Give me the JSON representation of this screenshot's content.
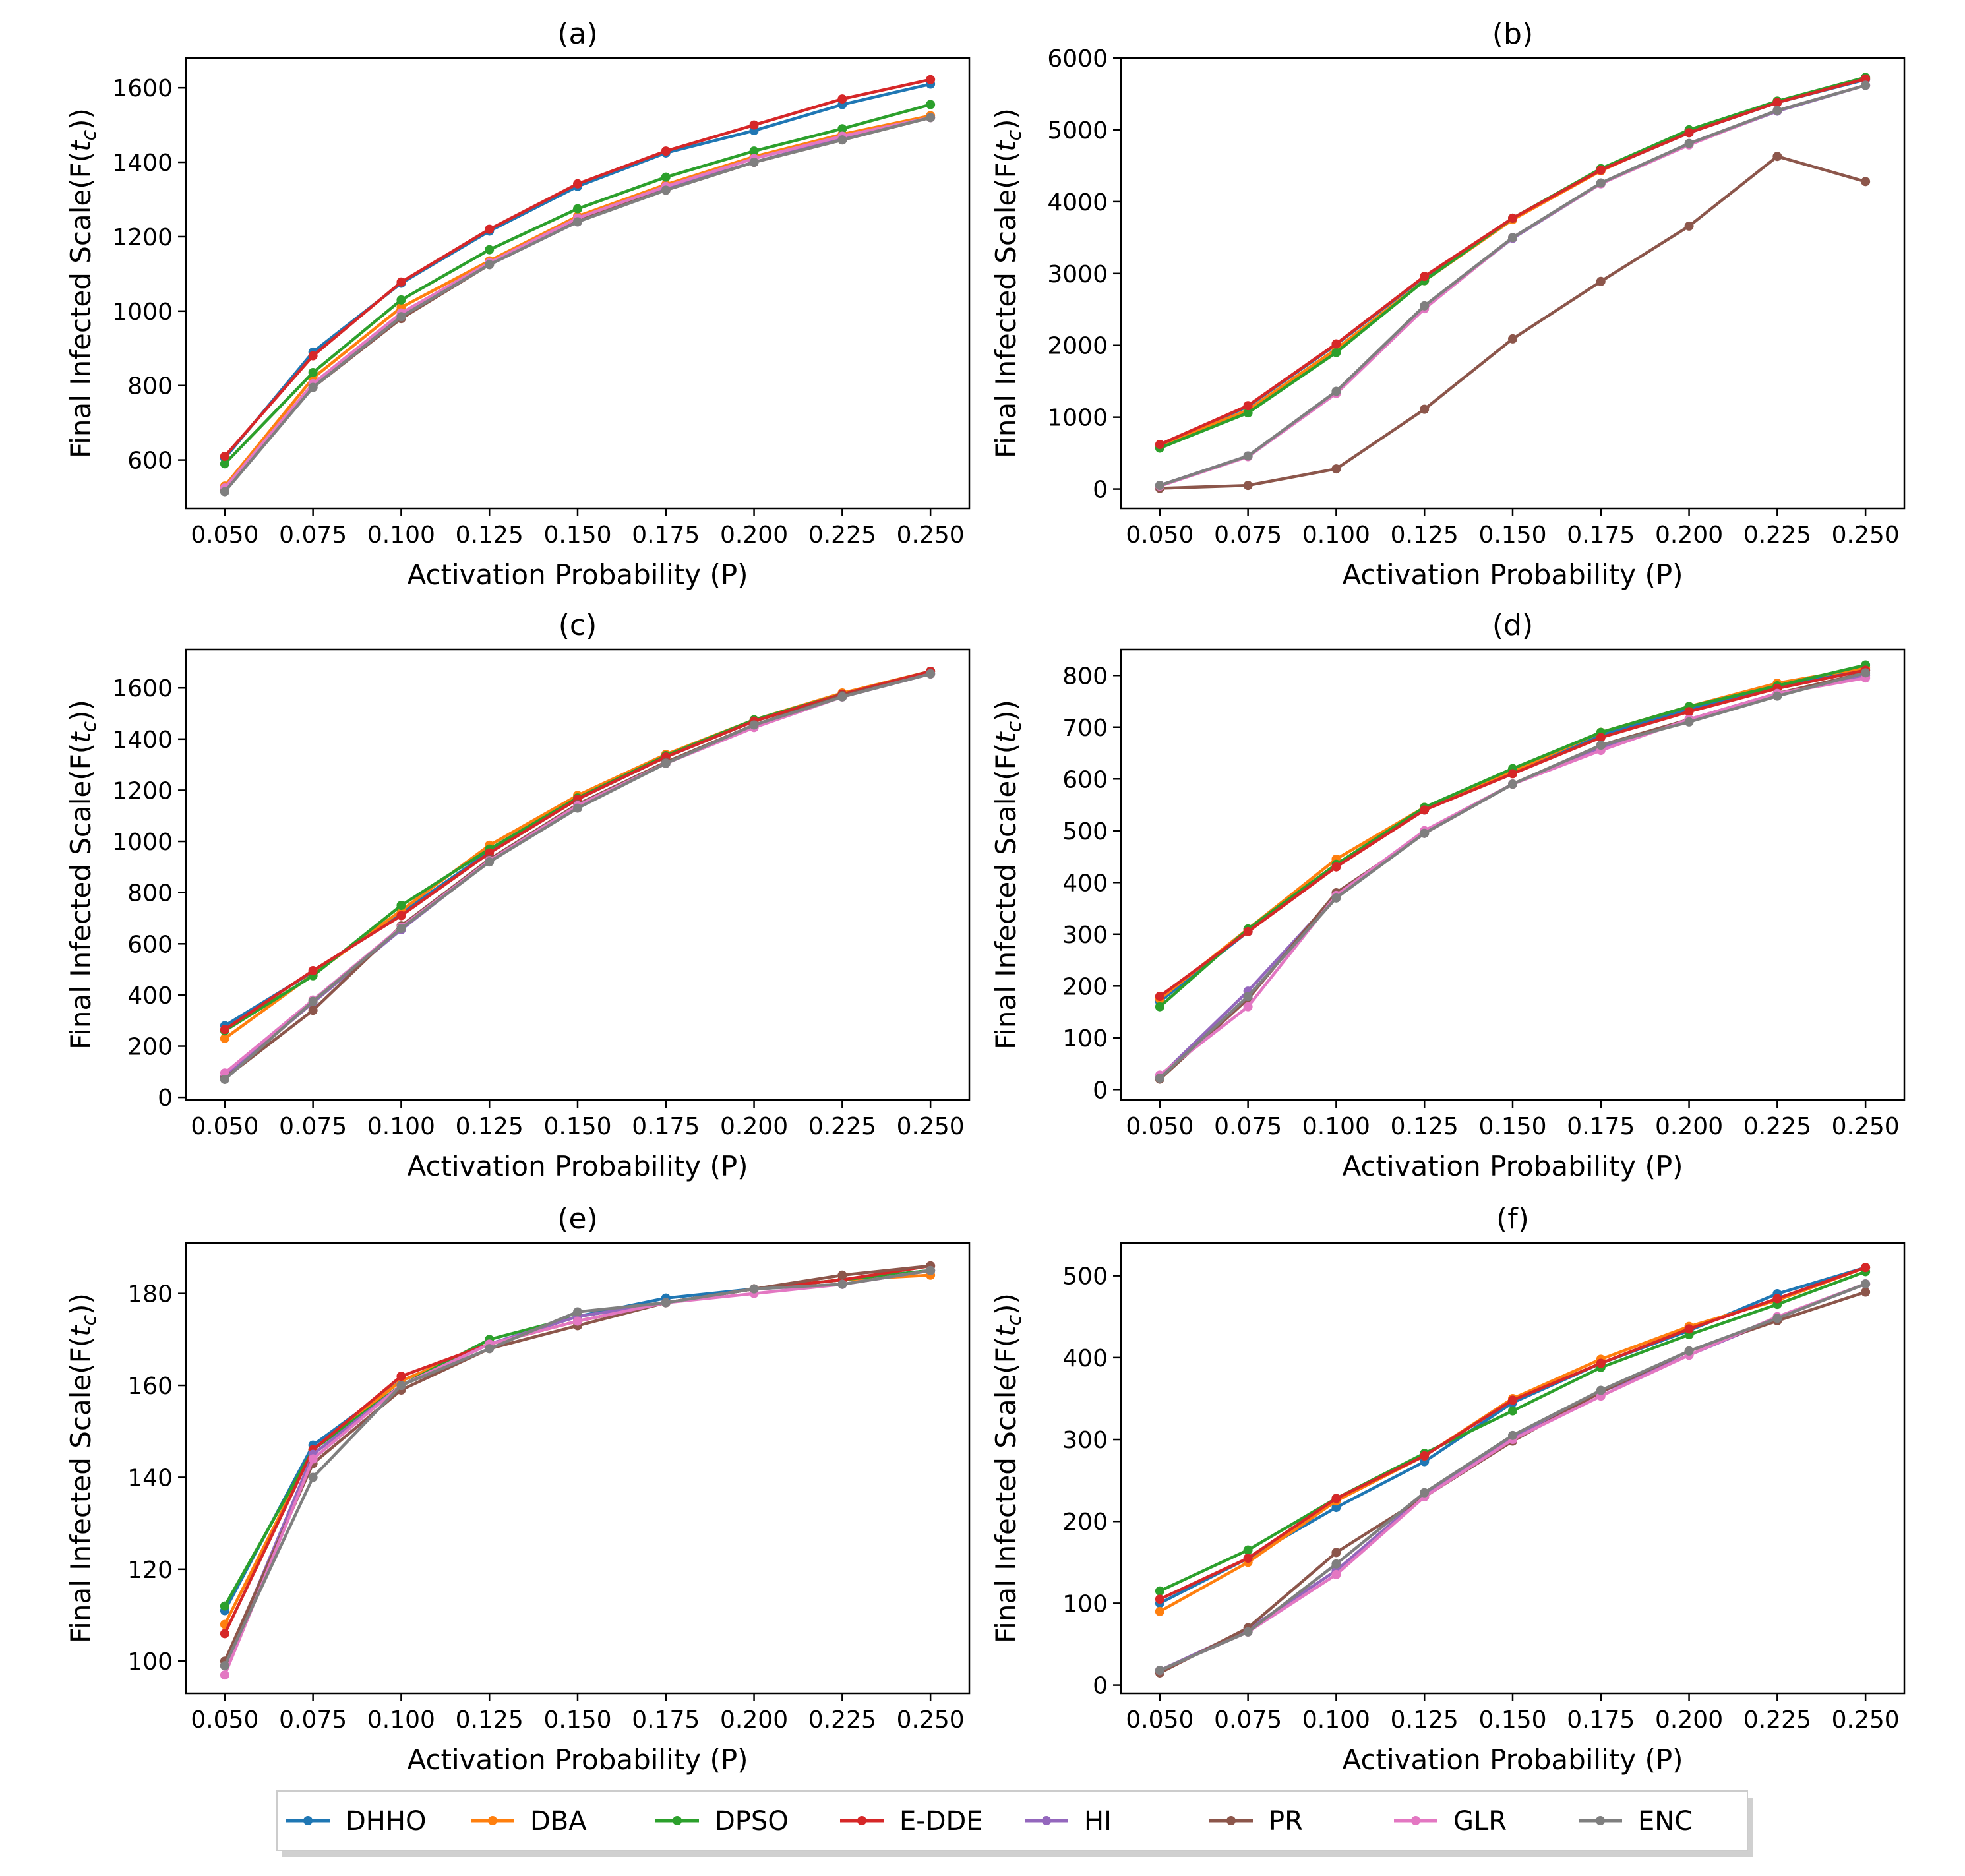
{
  "figure": {
    "legend": [
      {
        "name": "DHHO",
        "color": "#1f77b4"
      },
      {
        "name": "DBA",
        "color": "#ff7f0e"
      },
      {
        "name": "DPSO",
        "color": "#2ca02c"
      },
      {
        "name": "E-DDE",
        "color": "#d62728"
      },
      {
        "name": "HI",
        "color": "#9467bd"
      },
      {
        "name": "PR",
        "color": "#8c564b"
      },
      {
        "name": "GLR",
        "color": "#e377c2"
      },
      {
        "name": "ENC",
        "color": "#7f7f7f"
      }
    ]
  },
  "chart_data": [
    {
      "type": "line",
      "title": "(a)",
      "xlabel": "Activation Probability (P)",
      "ylabel": "Final Infected Scale(F(t_c))",
      "x": [
        0.05,
        0.075,
        0.1,
        0.125,
        0.15,
        0.175,
        0.2,
        0.225,
        0.25
      ],
      "xticks": [
        "0.050",
        "0.075",
        "0.100",
        "0.125",
        "0.150",
        "0.175",
        "0.200",
        "0.225",
        "0.250"
      ],
      "xlim": [
        0.039,
        0.261
      ],
      "ylim": [
        470,
        1680
      ],
      "yticks": [
        600,
        800,
        1000,
        1200,
        1400,
        1600
      ],
      "series": [
        {
          "name": "DHHO",
          "values": [
            605,
            890,
            1075,
            1215,
            1335,
            1425,
            1485,
            1555,
            1610
          ]
        },
        {
          "name": "DBA",
          "values": [
            530,
            820,
            1010,
            1135,
            1255,
            1340,
            1415,
            1475,
            1525
          ]
        },
        {
          "name": "DPSO",
          "values": [
            590,
            835,
            1030,
            1165,
            1275,
            1360,
            1430,
            1490,
            1555
          ]
        },
        {
          "name": "E-DDE",
          "values": [
            610,
            880,
            1078,
            1220,
            1342,
            1430,
            1500,
            1570,
            1622
          ]
        },
        {
          "name": "HI",
          "values": [
            520,
            800,
            990,
            1125,
            1240,
            1330,
            1400,
            1465,
            1520
          ]
        },
        {
          "name": "PR",
          "values": [
            520,
            795,
            980,
            1125,
            1245,
            1325,
            1400,
            1460,
            1520
          ]
        },
        {
          "name": "GLR",
          "values": [
            525,
            805,
            995,
            1130,
            1250,
            1335,
            1410,
            1470,
            1520
          ]
        },
        {
          "name": "ENC",
          "values": [
            515,
            795,
            985,
            1125,
            1240,
            1325,
            1400,
            1460,
            1520
          ]
        }
      ]
    },
    {
      "type": "line",
      "title": "(b)",
      "xlabel": "Activation Probability (P)",
      "ylabel": "Final Infected Scale(F(t_c))",
      "x": [
        0.05,
        0.075,
        0.1,
        0.125,
        0.15,
        0.175,
        0.2,
        0.225,
        0.25
      ],
      "xticks": [
        "0.050",
        "0.075",
        "0.100",
        "0.125",
        "0.150",
        "0.175",
        "0.200",
        "0.225",
        "0.250"
      ],
      "xlim": [
        0.039,
        0.261
      ],
      "ylim": [
        -270,
        6000
      ],
      "yticks": [
        0,
        1000,
        2000,
        3000,
        4000,
        5000,
        6000
      ],
      "series": [
        {
          "name": "DHHO",
          "values": [
            610,
            1150,
            2010,
            2950,
            3770,
            4440,
            4960,
            5380,
            5700
          ]
        },
        {
          "name": "DBA",
          "values": [
            600,
            1100,
            1950,
            2900,
            3750,
            4430,
            4980,
            5400,
            5720
          ]
        },
        {
          "name": "DPSO",
          "values": [
            570,
            1060,
            1900,
            2900,
            3770,
            4460,
            5000,
            5400,
            5730
          ]
        },
        {
          "name": "E-DDE",
          "values": [
            620,
            1160,
            2020,
            2960,
            3770,
            4440,
            4960,
            5380,
            5710
          ]
        },
        {
          "name": "HI",
          "values": [
            50,
            460,
            1340,
            2530,
            3490,
            4250,
            4800,
            5260,
            5620
          ]
        },
        {
          "name": "PR",
          "values": [
            10,
            50,
            280,
            1110,
            2090,
            2890,
            3660,
            4630,
            4280
          ]
        },
        {
          "name": "GLR",
          "values": [
            40,
            450,
            1330,
            2510,
            3500,
            4250,
            4790,
            5270,
            5620
          ]
        },
        {
          "name": "ENC",
          "values": [
            50,
            460,
            1360,
            2550,
            3500,
            4260,
            4810,
            5270,
            5620
          ]
        }
      ]
    },
    {
      "type": "line",
      "title": "(c)",
      "xlabel": "Activation Probability (P)",
      "ylabel": "Final Infected Scale(F(t_c))",
      "x": [
        0.05,
        0.075,
        0.1,
        0.125,
        0.15,
        0.175,
        0.2,
        0.225,
        0.25
      ],
      "xticks": [
        "0.050",
        "0.075",
        "0.100",
        "0.125",
        "0.150",
        "0.175",
        "0.200",
        "0.225",
        "0.250"
      ],
      "xlim": [
        0.039,
        0.261
      ],
      "ylim": [
        -10,
        1750
      ],
      "yticks": [
        0,
        200,
        400,
        600,
        800,
        1000,
        1200,
        1400,
        1600
      ],
      "series": [
        {
          "name": "DHHO",
          "values": [
            280,
            490,
            720,
            960,
            1165,
            1330,
            1470,
            1575,
            1665
          ]
        },
        {
          "name": "DBA",
          "values": [
            230,
            480,
            730,
            985,
            1180,
            1340,
            1475,
            1580,
            1665
          ]
        },
        {
          "name": "DPSO",
          "values": [
            260,
            475,
            750,
            970,
            1170,
            1335,
            1475,
            1575,
            1665
          ]
        },
        {
          "name": "E-DDE",
          "values": [
            265,
            495,
            710,
            955,
            1165,
            1330,
            1470,
            1575,
            1665
          ]
        },
        {
          "name": "HI",
          "values": [
            80,
            370,
            655,
            925,
            1135,
            1305,
            1450,
            1565,
            1655
          ]
        },
        {
          "name": "PR",
          "values": [
            75,
            340,
            670,
            930,
            1145,
            1310,
            1455,
            1570,
            1655
          ]
        },
        {
          "name": "GLR",
          "values": [
            95,
            380,
            665,
            925,
            1140,
            1305,
            1445,
            1565,
            1655
          ]
        },
        {
          "name": "ENC",
          "values": [
            70,
            375,
            660,
            920,
            1130,
            1305,
            1455,
            1565,
            1655
          ]
        }
      ]
    },
    {
      "type": "line",
      "title": "(d)",
      "xlabel": "Activation Probability (P)",
      "ylabel": "Final Infected Scale(F(t_c))",
      "x": [
        0.05,
        0.075,
        0.1,
        0.125,
        0.15,
        0.175,
        0.2,
        0.225,
        0.25
      ],
      "xticks": [
        "0.050",
        "0.075",
        "0.100",
        "0.125",
        "0.150",
        "0.175",
        "0.200",
        "0.225",
        "0.250"
      ],
      "xlim": [
        0.039,
        0.261
      ],
      "ylim": [
        -20,
        850
      ],
      "yticks": [
        0,
        100,
        200,
        300,
        400,
        500,
        600,
        700,
        800
      ],
      "series": [
        {
          "name": "DHHO",
          "values": [
            170,
            305,
            435,
            540,
            615,
            685,
            735,
            780,
            810
          ]
        },
        {
          "name": "DBA",
          "values": [
            175,
            310,
            445,
            545,
            615,
            690,
            740,
            785,
            815
          ]
        },
        {
          "name": "DPSO",
          "values": [
            160,
            310,
            435,
            545,
            620,
            690,
            740,
            780,
            820
          ]
        },
        {
          "name": "E-DDE",
          "values": [
            180,
            305,
            430,
            540,
            610,
            680,
            730,
            775,
            810
          ]
        },
        {
          "name": "HI",
          "values": [
            25,
            190,
            375,
            495,
            590,
            660,
            715,
            765,
            800
          ]
        },
        {
          "name": "PR",
          "values": [
            20,
            175,
            380,
            495,
            590,
            665,
            715,
            765,
            805
          ]
        },
        {
          "name": "GLR",
          "values": [
            28,
            160,
            375,
            500,
            590,
            655,
            715,
            765,
            795
          ]
        },
        {
          "name": "ENC",
          "values": [
            22,
            180,
            370,
            495,
            590,
            665,
            710,
            760,
            805
          ]
        }
      ]
    },
    {
      "type": "line",
      "title": "(e)",
      "xlabel": "Activation Probability (P)",
      "ylabel": "Final Infected Scale(F(t_c))",
      "x": [
        0.05,
        0.075,
        0.1,
        0.125,
        0.15,
        0.175,
        0.2,
        0.225,
        0.25
      ],
      "xticks": [
        "0.050",
        "0.075",
        "0.100",
        "0.125",
        "0.150",
        "0.175",
        "0.200",
        "0.225",
        "0.250"
      ],
      "xlim": [
        0.039,
        0.261
      ],
      "ylim": [
        93,
        191
      ],
      "yticks": [
        100,
        120,
        140,
        160,
        180
      ],
      "series": [
        {
          "name": "DHHO",
          "values": [
            111,
            147,
            161,
            169,
            175,
            179,
            181,
            183,
            185
          ]
        },
        {
          "name": "DBA",
          "values": [
            108,
            146,
            161,
            169,
            174,
            178,
            181,
            183,
            184
          ]
        },
        {
          "name": "DPSO",
          "values": [
            112,
            146,
            160,
            170,
            175,
            178,
            181,
            183,
            185
          ]
        },
        {
          "name": "E-DDE",
          "values": [
            106,
            146,
            162,
            169,
            174,
            178,
            181,
            183,
            186
          ]
        },
        {
          "name": "HI",
          "values": [
            99,
            145,
            160,
            169,
            175,
            178,
            181,
            182,
            185
          ]
        },
        {
          "name": "PR",
          "values": [
            100,
            143,
            159,
            168,
            173,
            178,
            181,
            184,
            186
          ]
        },
        {
          "name": "GLR",
          "values": [
            97,
            144,
            160,
            169,
            174,
            178,
            180,
            182,
            185
          ]
        },
        {
          "name": "ENC",
          "values": [
            99,
            140,
            160,
            168,
            176,
            178,
            181,
            182,
            185
          ]
        }
      ]
    },
    {
      "type": "line",
      "title": "(f)",
      "xlabel": "Activation Probability (P)",
      "ylabel": "Final Infected Scale(F(t_c))",
      "x": [
        0.05,
        0.075,
        0.1,
        0.125,
        0.15,
        0.175,
        0.2,
        0.225,
        0.25
      ],
      "xticks": [
        "0.050",
        "0.075",
        "0.100",
        "0.125",
        "0.150",
        "0.175",
        "0.200",
        "0.225",
        "0.250"
      ],
      "xlim": [
        0.039,
        0.261
      ],
      "ylim": [
        -10,
        540
      ],
      "yticks": [
        0,
        100,
        200,
        300,
        400,
        500
      ],
      "series": [
        {
          "name": "DHHO",
          "values": [
            100,
            155,
            217,
            273,
            345,
            393,
            433,
            478,
            510
          ]
        },
        {
          "name": "DBA",
          "values": [
            90,
            150,
            225,
            280,
            350,
            398,
            438,
            470,
            510
          ]
        },
        {
          "name": "DPSO",
          "values": [
            115,
            165,
            228,
            283,
            335,
            388,
            428,
            465,
            505
          ]
        },
        {
          "name": "E-DDE",
          "values": [
            105,
            155,
            228,
            280,
            348,
            393,
            435,
            472,
            510
          ]
        },
        {
          "name": "HI",
          "values": [
            18,
            68,
            140,
            232,
            303,
            358,
            403,
            448,
            490
          ]
        },
        {
          "name": "PR",
          "values": [
            15,
            70,
            162,
            230,
            298,
            358,
            408,
            445,
            480
          ]
        },
        {
          "name": "GLR",
          "values": [
            18,
            65,
            135,
            230,
            300,
            353,
            403,
            450,
            490
          ]
        },
        {
          "name": "ENC",
          "values": [
            18,
            65,
            148,
            235,
            305,
            360,
            408,
            448,
            490
          ]
        }
      ]
    }
  ]
}
